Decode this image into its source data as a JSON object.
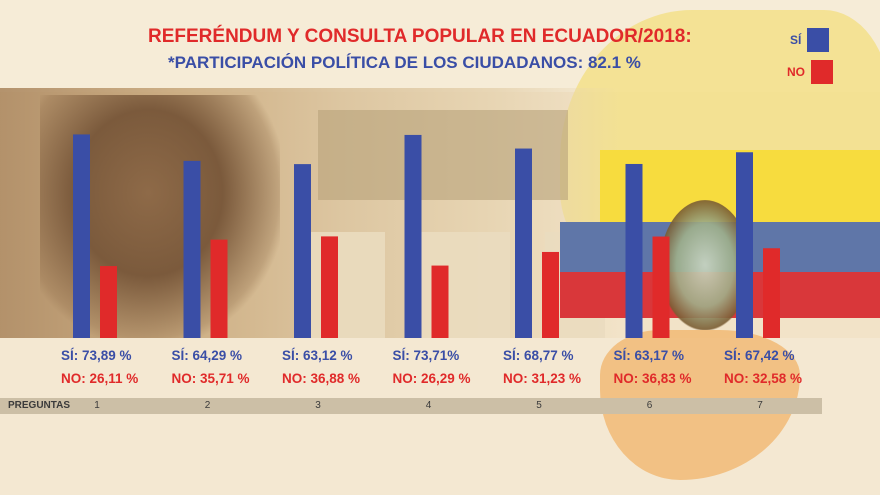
{
  "chart_data": {
    "type": "bar",
    "title": "REFERÉNDUM Y CONSULTA POPULAR EN ECUADOR/2018:",
    "subtitle": "*PARTICIPACIÓN POLÍTICA DE LOS CIUDADANOS: 82.1 %",
    "xlabel": "PREGUNTAS",
    "ylabel": "",
    "ylim": [
      0,
      100
    ],
    "categories": [
      "1",
      "2",
      "3",
      "4",
      "5",
      "6",
      "7"
    ],
    "series": [
      {
        "name": "SÍ",
        "color": "#3a4ea6",
        "values": [
          73.89,
          64.29,
          63.12,
          73.71,
          68.77,
          63.17,
          67.42
        ],
        "labels": [
          "SÍ: 73,89 %",
          "SÍ: 64,29 %",
          "SÍ: 63,12 %",
          "SÍ: 73,71%",
          "SÍ: 68,77 %",
          "SÍ: 63,17 %",
          "SÍ: 67,42 %"
        ]
      },
      {
        "name": "NO",
        "color": "#e02a2a",
        "values": [
          26.11,
          35.71,
          36.88,
          26.29,
          31.23,
          36.83,
          32.58
        ],
        "labels": [
          "NO: 26,11 %",
          "NO: 35,71 %",
          "NO: 36,88 %",
          "NO: 26,29 %",
          "NO: 31,23 %",
          "NO: 36,83 %",
          "NO: 32,58 %"
        ]
      }
    ],
    "legend": [
      {
        "label": "SÍ",
        "color": "#3a4ea6"
      },
      {
        "label": "NO",
        "color": "#e02a2a"
      }
    ],
    "legend_position": "top-right",
    "grid": false
  }
}
